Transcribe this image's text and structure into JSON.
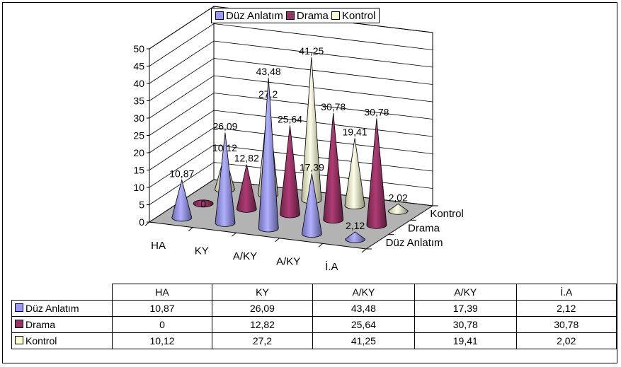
{
  "chart_data": {
    "type": "bar",
    "subtype": "3d-cone",
    "categories": [
      "HA",
      "KY",
      "A/KY",
      "A/KY",
      "İ.A"
    ],
    "series": [
      {
        "name": "Düz Anlatım",
        "color": "#9999ff",
        "values": [
          10.87,
          26.09,
          43.48,
          17.39,
          2.12
        ],
        "labels": [
          "10,87",
          "26,09",
          "43,48",
          "17,39",
          "2,12"
        ]
      },
      {
        "name": "Drama",
        "color": "#993366",
        "values": [
          0,
          12.82,
          25.64,
          30.78,
          30.78
        ],
        "labels": [
          "0",
          "12,82",
          "25,64",
          "30,78",
          "30,78"
        ]
      },
      {
        "name": "Kontrol",
        "color": "#ffffcc",
        "values": [
          10.12,
          27.2,
          41.25,
          19.41,
          2.02
        ],
        "labels": [
          "10,12",
          "27,2",
          "41,25",
          "19,41",
          "2,02"
        ]
      }
    ],
    "ylim": [
      0,
      50
    ],
    "yticks": [
      "0",
      "5",
      "10",
      "15",
      "20",
      "25",
      "30",
      "35",
      "40",
      "45",
      "50"
    ],
    "legend_position": "top",
    "grid": true,
    "data_table": true
  }
}
